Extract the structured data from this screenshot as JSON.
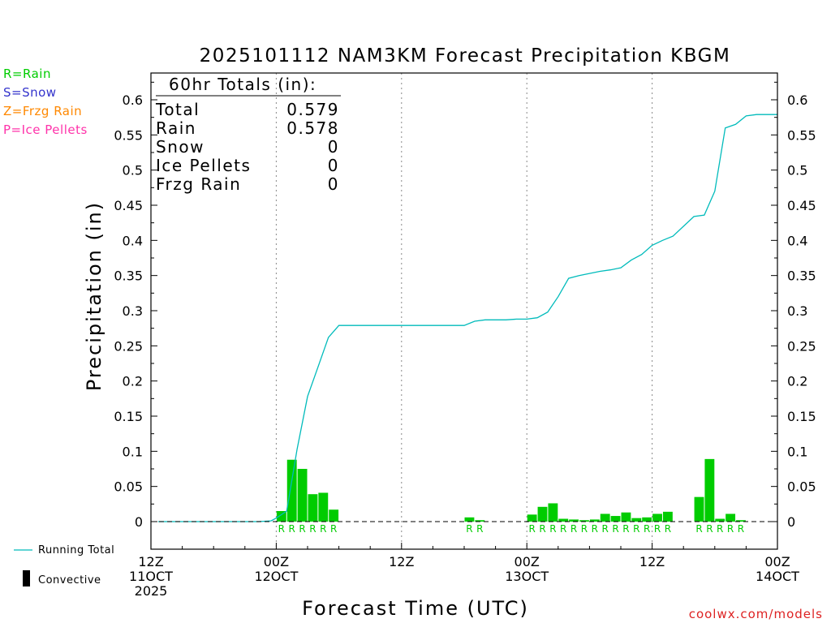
{
  "chart_data": {
    "type": "bar",
    "title": "2025101112 NAM3KM Forecast Precipitation KBGM",
    "xlabel": "Forecast Time (UTC)",
    "ylabel": "Precipitation (in)",
    "ylim": [
      -0.035,
      0.64
    ],
    "xlim": [
      0,
      60
    ],
    "yticks": [
      0,
      0.05,
      0.1,
      0.15,
      0.2,
      0.25,
      0.3,
      0.35,
      0.4,
      0.45,
      0.5,
      0.55,
      0.6
    ],
    "ytick_labels": [
      "0",
      "0.05",
      "0.1",
      "0.15",
      "0.2",
      "0.25",
      "0.3",
      "0.35",
      "0.4",
      "0.45",
      "0.5",
      "0.55",
      "0.6"
    ],
    "xticks": [
      {
        "hour": 0,
        "lines": [
          "12Z",
          "11OCT",
          "2025"
        ]
      },
      {
        "hour": 12,
        "lines": [
          "00Z",
          "12OCT"
        ]
      },
      {
        "hour": 24,
        "lines": [
          "12Z"
        ]
      },
      {
        "hour": 36,
        "lines": [
          "00Z",
          "13OCT"
        ]
      },
      {
        "hour": 48,
        "lines": [
          "12Z"
        ]
      },
      {
        "hour": 60,
        "lines": [
          "00Z",
          "14OCT"
        ]
      }
    ],
    "gridlines_hours": [
      12,
      24,
      36,
      48
    ],
    "grid": "vertical dotted",
    "legend_types": [
      {
        "code": "R",
        "label": "R=Rain",
        "color": "#00cc00"
      },
      {
        "code": "S",
        "label": "S=Snow",
        "color": "#3333cc"
      },
      {
        "code": "Z",
        "label": "Z=Frzg Rain",
        "color": "#ff8800"
      },
      {
        "code": "P",
        "label": "P=Ice Pellets",
        "color": "#ff33aa"
      }
    ],
    "legend_lines": [
      {
        "label": "Running Total",
        "color": "#00bbbb"
      },
      {
        "label": "Convective",
        "color": "#000000"
      }
    ],
    "totals_box": {
      "heading": "60hr Totals (in):",
      "rows": [
        {
          "label": "Total",
          "value": "0.579"
        },
        {
          "label": "Rain",
          "value": "0.578"
        },
        {
          "label": "Snow",
          "value": "0"
        },
        {
          "label": "Ice Pellets",
          "value": "0"
        },
        {
          "label": "Frzg Rain",
          "value": "0"
        }
      ]
    },
    "bar_color": "#00cc00",
    "bars": [
      {
        "hour": 13,
        "value": 0.015,
        "type": "R"
      },
      {
        "hour": 14,
        "value": 0.088,
        "type": "R"
      },
      {
        "hour": 15,
        "value": 0.075,
        "type": "R"
      },
      {
        "hour": 16,
        "value": 0.039,
        "type": "R"
      },
      {
        "hour": 17,
        "value": 0.041,
        "type": "R"
      },
      {
        "hour": 18,
        "value": 0.017,
        "type": "R"
      },
      {
        "hour": 31,
        "value": 0.006,
        "type": "R"
      },
      {
        "hour": 32,
        "value": 0.002,
        "type": "R"
      },
      {
        "hour": 37,
        "value": 0.01,
        "type": "R"
      },
      {
        "hour": 38,
        "value": 0.021,
        "type": "R"
      },
      {
        "hour": 39,
        "value": 0.026,
        "type": "R"
      },
      {
        "hour": 40,
        "value": 0.004,
        "type": "R"
      },
      {
        "hour": 41,
        "value": 0.003,
        "type": "R"
      },
      {
        "hour": 42,
        "value": 0.002,
        "type": "R"
      },
      {
        "hour": 43,
        "value": 0.003,
        "type": "R"
      },
      {
        "hour": 44,
        "value": 0.011,
        "type": "R"
      },
      {
        "hour": 45,
        "value": 0.008,
        "type": "R"
      },
      {
        "hour": 46,
        "value": 0.013,
        "type": "R"
      },
      {
        "hour": 47,
        "value": 0.005,
        "type": "R"
      },
      {
        "hour": 48,
        "value": 0.006,
        "type": "R"
      },
      {
        "hour": 49,
        "value": 0.011,
        "type": "R"
      },
      {
        "hour": 50,
        "value": 0.014,
        "type": "R"
      },
      {
        "hour": 53,
        "value": 0.035,
        "type": "R"
      },
      {
        "hour": 54,
        "value": 0.089,
        "type": "R"
      },
      {
        "hour": 55,
        "value": 0.004,
        "type": "R"
      },
      {
        "hour": 56,
        "value": 0.011,
        "type": "R"
      },
      {
        "hour": 57,
        "value": 0.002,
        "type": "R"
      }
    ],
    "running_total": {
      "name": "Running Total",
      "color": "#00bbbb",
      "x": [
        0.7,
        10.3,
        11.5,
        12,
        13,
        14,
        15,
        16,
        17,
        18,
        19,
        20,
        30,
        31,
        32,
        33,
        34,
        35,
        36,
        37,
        38,
        39,
        40,
        41,
        42,
        43,
        44,
        45,
        46,
        47,
        48,
        49,
        50,
        52,
        53,
        54,
        55,
        56,
        57,
        58,
        59,
        60
      ],
      "y": [
        0,
        0,
        0.001,
        0.005,
        0.015,
        0.103,
        0.178,
        0.22,
        0.262,
        0.279,
        0.279,
        0.279,
        0.279,
        0.285,
        0.287,
        0.287,
        0.287,
        0.288,
        0.288,
        0.29,
        0.298,
        0.32,
        0.346,
        0.35,
        0.353,
        0.356,
        0.358,
        0.361,
        0.372,
        0.38,
        0.393,
        0.4,
        0.406,
        0.434,
        0.436,
        0.47,
        0.56,
        0.565,
        0.577,
        0.579,
        0.579,
        0.579
      ]
    },
    "footer_credit": "coolwx.com/models"
  }
}
